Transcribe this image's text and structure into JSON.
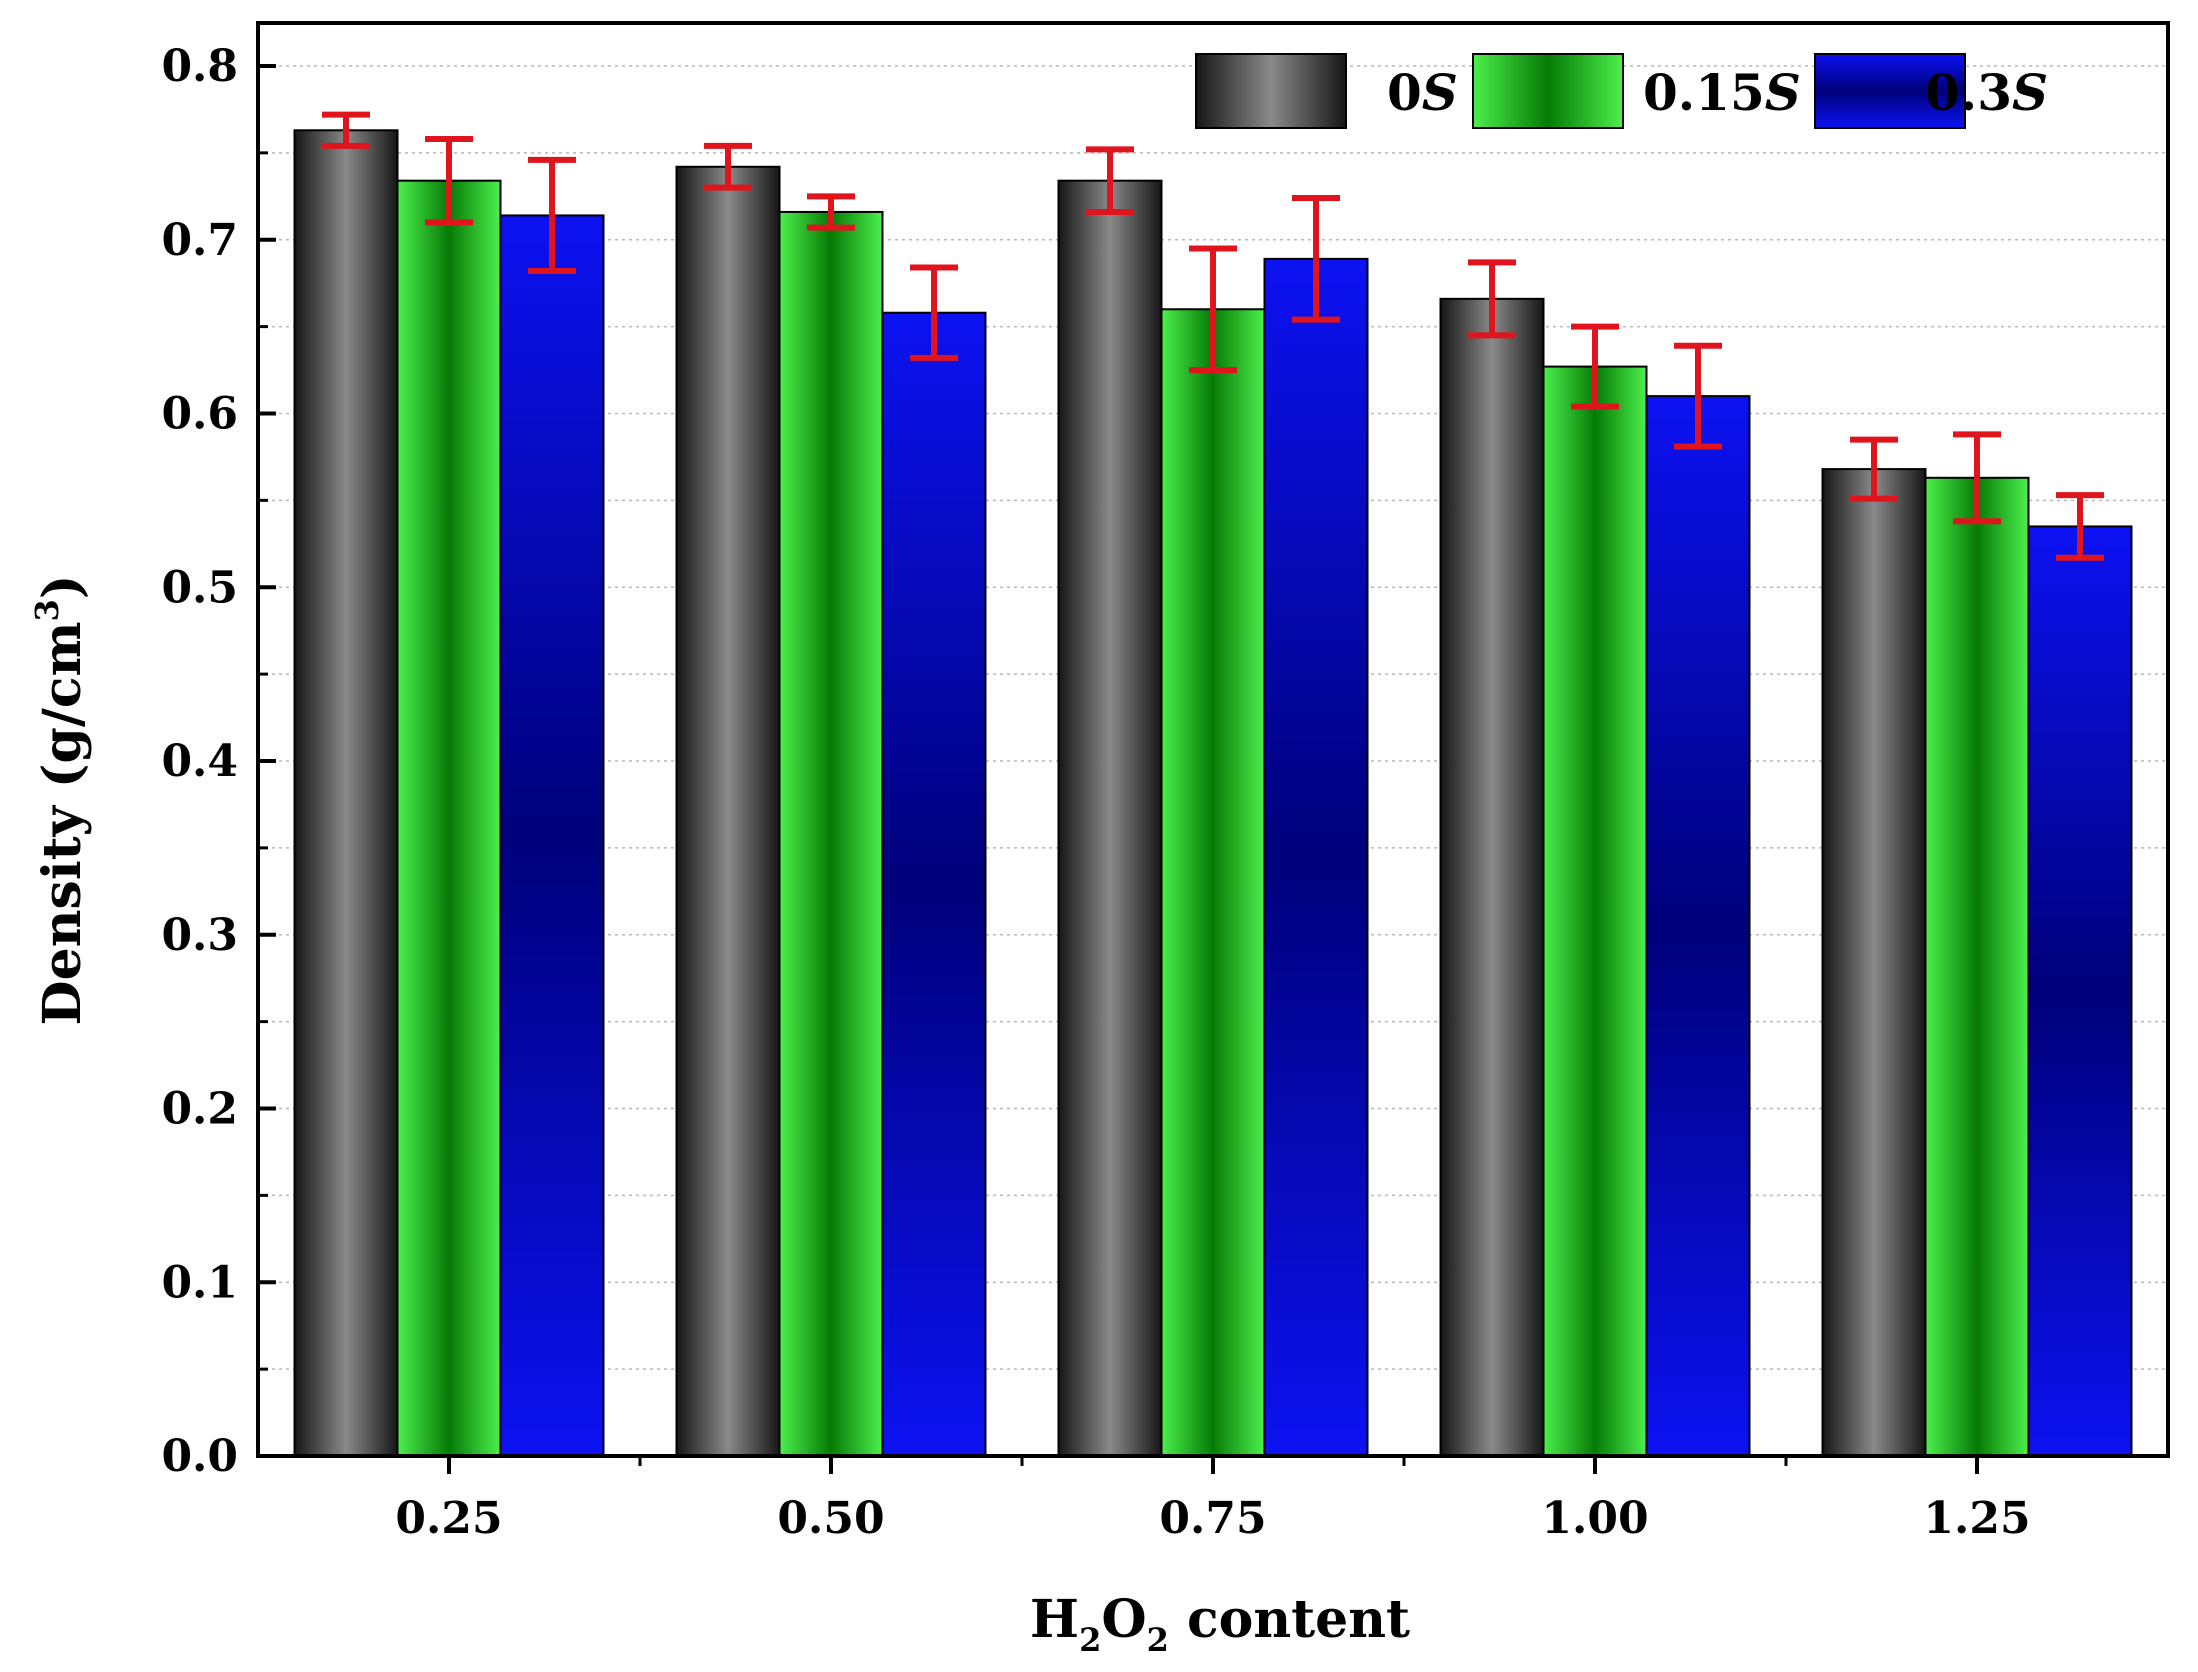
{
  "chart_data": {
    "type": "bar",
    "title": "",
    "xlabel": {
      "main": "H",
      "sub1": "2",
      "mid": "O",
      "sub2": "2",
      "rest": " content"
    },
    "ylabel": {
      "main": "Density (g/cm",
      "sup": "3",
      "end": ")"
    },
    "ylim": [
      0.0,
      0.8
    ],
    "yticks": [
      "0.0",
      "0.1",
      "0.2",
      "0.3",
      "0.4",
      "0.5",
      "0.6",
      "0.7",
      "0.8"
    ],
    "categories": [
      "0.25",
      "0.50",
      "0.75",
      "1.00",
      "1.25"
    ],
    "grid": true,
    "legend_position": "top-right",
    "series": [
      {
        "name": "0S",
        "name_num": "0",
        "name_ital": "S",
        "color": "#5a5a5a",
        "values": [
          0.763,
          0.742,
          0.734,
          0.666,
          0.568
        ],
        "errors": [
          0.009,
          0.012,
          0.018,
          0.021,
          0.017
        ]
      },
      {
        "name": "0.15S",
        "name_num": "0.15",
        "name_ital": "S",
        "color": "#22c022",
        "values": [
          0.734,
          0.716,
          0.66,
          0.627,
          0.563
        ],
        "errors": [
          0.024,
          0.009,
          0.035,
          0.023,
          0.025
        ]
      },
      {
        "name": "0.3S",
        "name_num": "0.3",
        "name_ital": "S",
        "color": "#1010c8",
        "values": [
          0.714,
          0.658,
          0.689,
          0.61,
          0.535
        ],
        "errors": [
          0.032,
          0.026,
          0.035,
          0.029,
          0.018
        ]
      }
    ],
    "error_bar_color": "#e0141c"
  }
}
